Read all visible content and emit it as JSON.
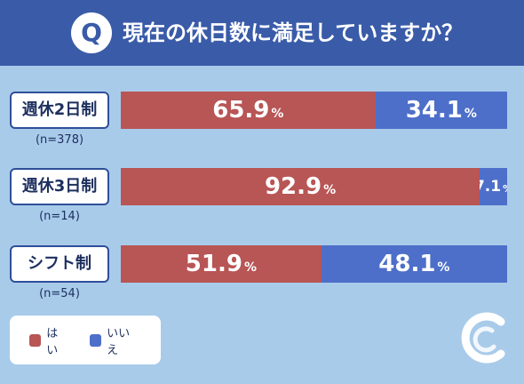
{
  "header": {
    "badge": "Q",
    "title": "現在の休日数に満足していますか？"
  },
  "colors": {
    "yes": "#b85555",
    "no": "#4d6fc9",
    "header": "#3a5ba8",
    "background": "#a9cbea"
  },
  "chart_data": {
    "type": "bar",
    "stacked": true,
    "orientation": "horizontal",
    "title": "現在の休日数に満足していますか？",
    "categories": [
      "週休2日制",
      "週休3日制",
      "シフト制"
    ],
    "sample_sizes": [
      "(n=378)",
      "(n=14)",
      "(n=54)"
    ],
    "series": [
      {
        "name": "はい",
        "values": [
          65.9,
          92.9,
          51.9
        ]
      },
      {
        "name": "いいえ",
        "values": [
          34.1,
          7.1,
          48.1
        ]
      }
    ],
    "unit": "%",
    "xlim": [
      0,
      100
    ],
    "legend_position": "bottom-left",
    "grid": false
  }
}
